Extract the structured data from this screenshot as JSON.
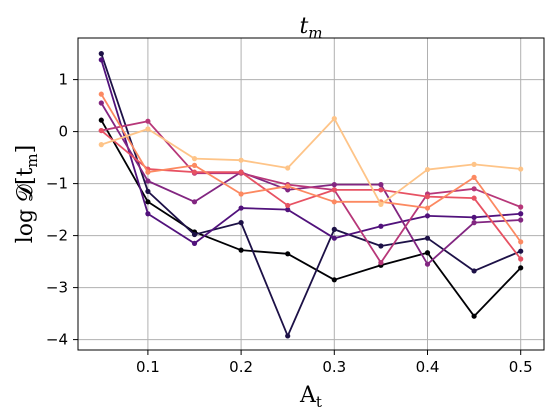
{
  "chart_data": {
    "type": "line",
    "title": "t_m",
    "title_display": "t",
    "title_sub": "m",
    "xlabel": "A_t",
    "xlabel_main": "A",
    "xlabel_sub": "t",
    "ylabel": "log 𝓓[t_m]",
    "ylabel_display": "log 𝓓[t",
    "ylabel_sub": "m",
    "ylabel_close": "]",
    "xlim": [
      0.025,
      0.525
    ],
    "ylim": [
      -4.2,
      1.8
    ],
    "grid": true,
    "x": [
      0.05,
      0.1,
      0.15,
      0.2,
      0.25,
      0.3,
      0.35,
      0.4,
      0.45,
      0.5
    ],
    "xticks": [
      0.1,
      0.2,
      0.3,
      0.4,
      0.5
    ],
    "xtick_labels": [
      "0.1",
      "0.2",
      "0.3",
      "0.4",
      "0.5"
    ],
    "yticks": [
      1,
      0,
      -1,
      -2,
      -3,
      -4
    ],
    "ytick_labels": [
      "1",
      "0",
      "−1",
      "−2",
      "−3",
      "−4"
    ],
    "series": [
      {
        "color": "#000004",
        "values": [
          0.22,
          -1.35,
          -1.93,
          -2.28,
          -2.35,
          -2.85,
          -2.57,
          -2.33,
          -3.55,
          -2.62
        ]
      },
      {
        "color": "#1d1147",
        "values": [
          1.5,
          -1.15,
          -1.98,
          -1.75,
          -3.93,
          -1.88,
          -2.2,
          -2.05,
          -2.68,
          -2.3
        ]
      },
      {
        "color": "#51127c",
        "values": [
          1.38,
          -1.58,
          -2.15,
          -1.47,
          -1.5,
          -2.05,
          -1.82,
          -1.62,
          -1.65,
          -1.58
        ]
      },
      {
        "color": "#822681",
        "values": [
          0.55,
          -0.95,
          -1.35,
          -0.78,
          -1.12,
          -1.02,
          -1.02,
          -2.55,
          -1.75,
          -1.7
        ]
      },
      {
        "color": "#b73779",
        "values": [
          0.02,
          0.2,
          -0.8,
          -0.8,
          -1.02,
          -1.12,
          -2.52,
          -1.2,
          -1.1,
          -1.45
        ]
      },
      {
        "color": "#e75263",
        "values": [
          0.02,
          -0.72,
          -0.78,
          -0.78,
          -1.42,
          -1.12,
          -1.12,
          -1.25,
          -1.28,
          -2.45
        ]
      },
      {
        "color": "#fc8961",
        "values": [
          0.72,
          -0.78,
          -0.65,
          -1.2,
          -1.05,
          -1.35,
          -1.35,
          -1.47,
          -0.88,
          -2.12
        ]
      },
      {
        "color": "#fec488",
        "values": [
          -0.25,
          0.05,
          -0.52,
          -0.55,
          -0.7,
          0.25,
          -1.4,
          -0.73,
          -0.63,
          -0.72
        ]
      }
    ]
  }
}
